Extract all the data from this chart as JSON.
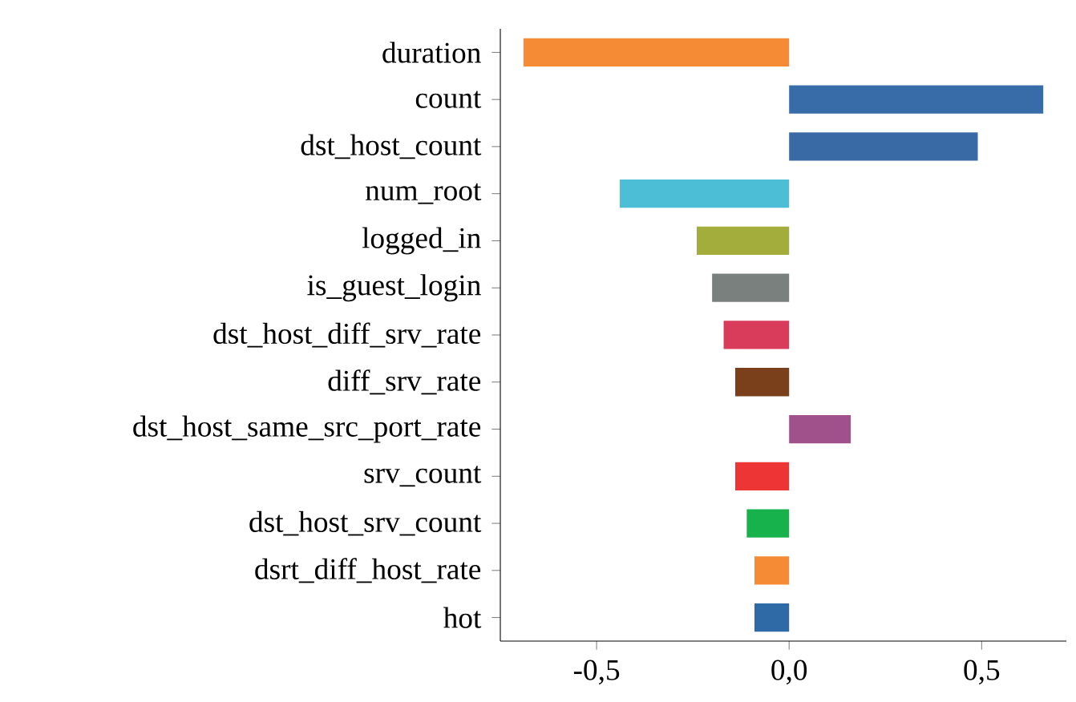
{
  "chart_data": {
    "type": "bar",
    "orientation": "horizontal",
    "categories": [
      "duration",
      "count",
      "dst_host_count",
      "num_root",
      "logged_in",
      "is_guest_login",
      "dst_host_diff_srv_rate",
      "diff_srv_rate",
      "dst_host_same_src_port_rate",
      "srv_count",
      "dst_host_srv_count",
      "dsrt_diff_host_rate",
      "hot"
    ],
    "values": [
      -0.69,
      0.66,
      0.49,
      -0.44,
      -0.24,
      -0.2,
      -0.17,
      -0.14,
      0.16,
      -0.14,
      -0.11,
      -0.09,
      -0.09
    ],
    "colors": [
      "#f58b34",
      "#386ca9",
      "#3a6aa6",
      "#4cbfd6",
      "#a2ad3b",
      "#7a807e",
      "#d93b5a",
      "#7a3f1b",
      "#a0508a",
      "#ee3535",
      "#17b24b",
      "#f58b34",
      "#2f6aa6"
    ],
    "xlim": [
      -0.75,
      0.72
    ],
    "xticks": [
      {
        "value": -0.5,
        "label": "-0,5"
      },
      {
        "value": 0,
        "label": "0,0"
      },
      {
        "value": 0.5,
        "label": "0,5"
      }
    ],
    "grid": false
  }
}
